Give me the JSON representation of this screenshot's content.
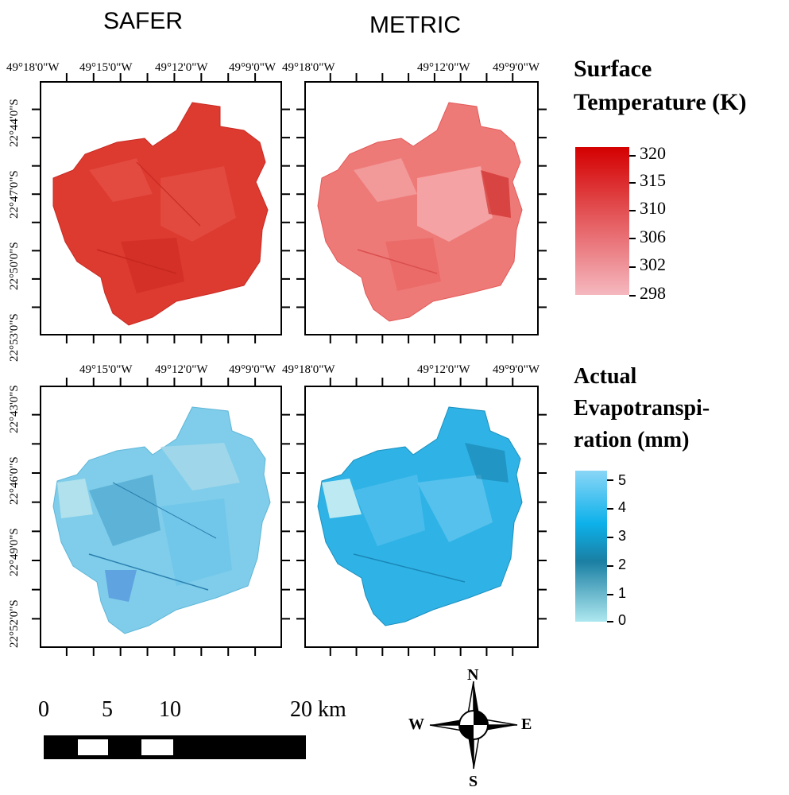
{
  "titles": {
    "safer": "SAFER",
    "metric": "METRIC"
  },
  "top_axis": {
    "safer_lon": [
      "49°18'0\"W",
      "49°15'0\"W",
      "49°12'0\"W",
      "49°9'0\"W"
    ],
    "metric_lon": [
      "49°18'0\"W",
      "49°12'0\"W",
      "49°9'0\"W"
    ],
    "lat": [
      "22°44'0\"S",
      "22°47'0\"S",
      "22°50'0\"S",
      "22°53'0\"S"
    ]
  },
  "bottom_axis": {
    "safer_lon": [
      "49°15'0\"W",
      "49°12'0\"W",
      "49°9'0\"W"
    ],
    "metric_lon": [
      "49°18'0\"W",
      "49°12'0\"W",
      "49°9'0\"W"
    ],
    "lat": [
      "22°43'0\"S",
      "22°46'0\"S",
      "22°49'0\"S",
      "22°52'0\"S"
    ]
  },
  "legend_temperature": {
    "title_line1": "Surface",
    "title_line2": "Temperature (K)",
    "ticks": [
      "320",
      "315",
      "310",
      "306",
      "302",
      "298"
    ],
    "colors": [
      "#d40000",
      "#f5b8bf"
    ]
  },
  "legend_et": {
    "title_line1": "Actual",
    "title_line2": "Evapotranspi-",
    "title_line3": "ration (mm)",
    "ticks": [
      "5",
      "4",
      "3",
      "2",
      "1",
      "0"
    ],
    "colors": [
      "#8ad6f7",
      "#0db1ea",
      "#1a7fa3",
      "#aee8ef"
    ]
  },
  "scale_bar": {
    "labels": [
      "0",
      "5",
      "10",
      "20 km"
    ]
  },
  "compass": {
    "n": "N",
    "s": "S",
    "e": "E",
    "w": "W"
  },
  "map_colors": {
    "safer_temp": "#dd3a30",
    "metric_temp": "#ee7a78",
    "safer_et": "#7fcdea",
    "metric_et": "#2fb3e6"
  }
}
